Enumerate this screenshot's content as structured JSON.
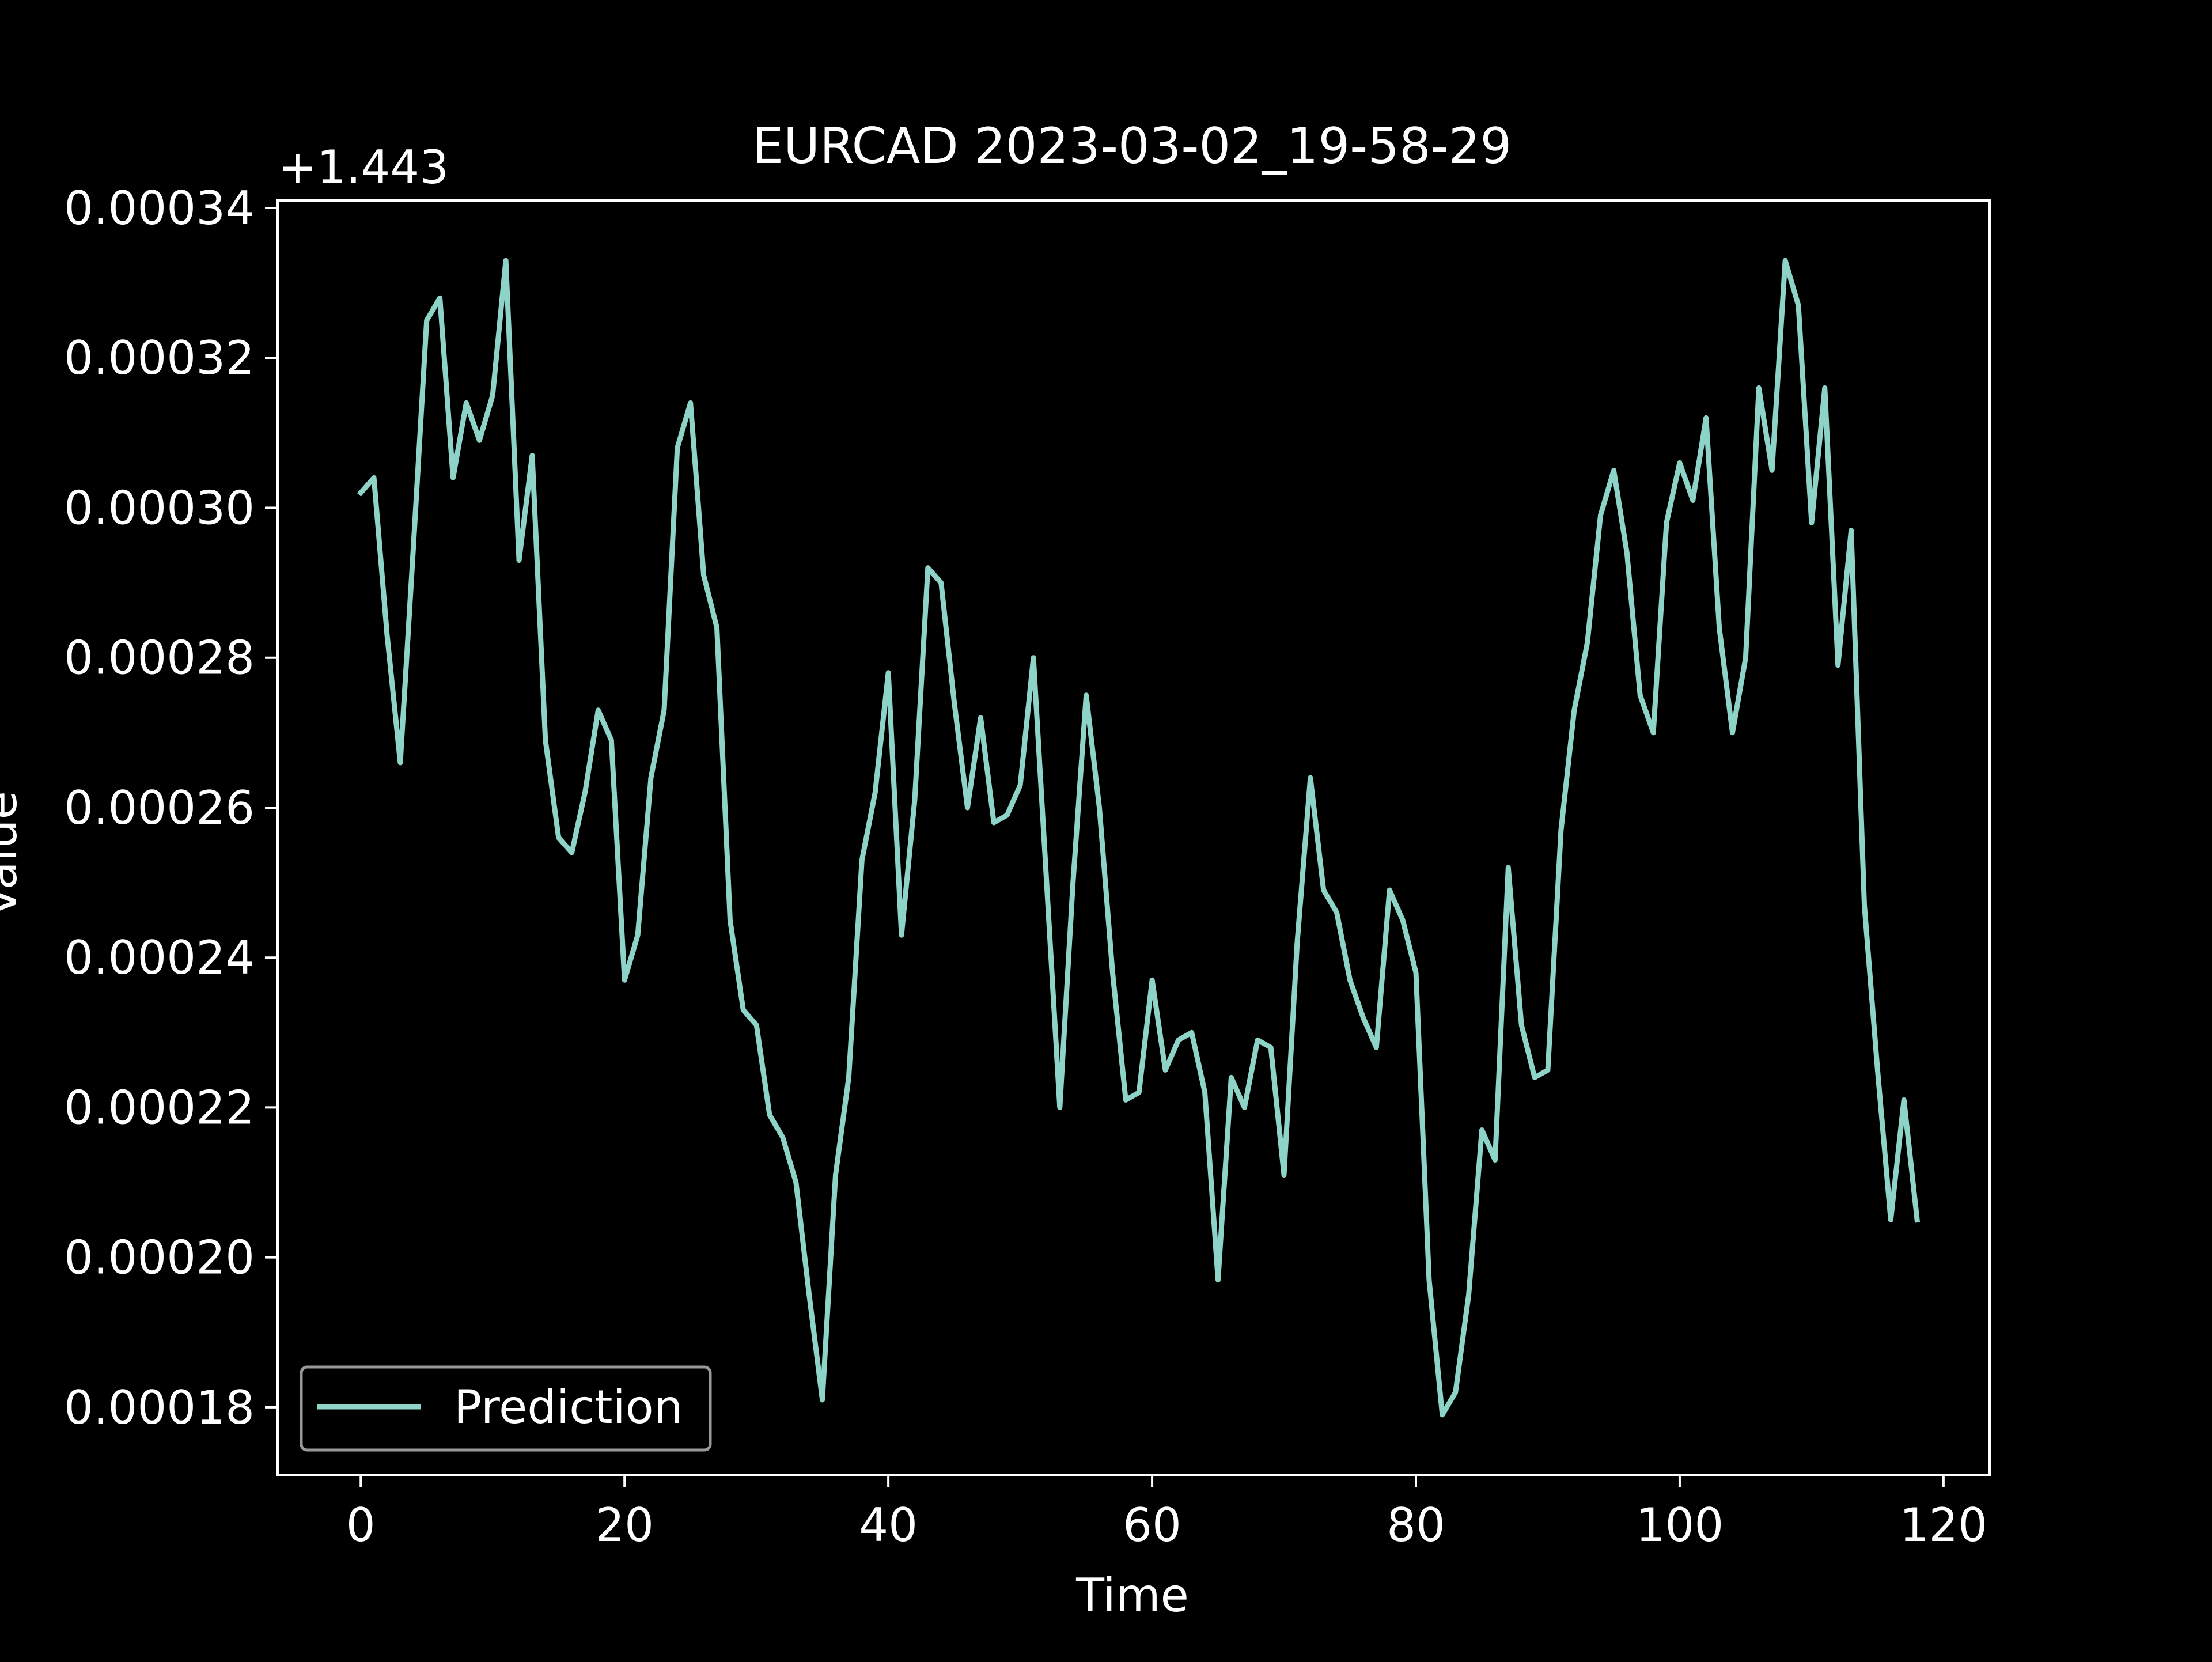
{
  "chart_data": {
    "type": "line",
    "title": "EURCAD 2023-03-02_19-58-29",
    "xlabel": "Time",
    "ylabel": "Value",
    "offset_label": "+1.443",
    "xlim": [
      -6.3,
      123.5
    ],
    "ylim": [
      0.000171,
      0.000341
    ],
    "x_ticks": [
      0,
      20,
      40,
      60,
      80,
      100,
      120
    ],
    "x_tick_labels": [
      "0",
      "20",
      "40",
      "60",
      "80",
      "100",
      "120"
    ],
    "y_ticks": [
      0.00018,
      0.0002,
      0.00022,
      0.00024,
      0.00026,
      0.00028,
      0.0003,
      0.00032,
      0.00034
    ],
    "y_tick_labels": [
      "0.00018",
      "0.00020",
      "0.00022",
      "0.00024",
      "0.00026",
      "0.00028",
      "0.00030",
      "0.00032",
      "0.00034"
    ],
    "grid": false,
    "legend": {
      "placement": "lower-left"
    },
    "colors": {
      "background": "#000000",
      "line": "#8dd3c7",
      "axes": "#ffffff",
      "text": "#ffffff",
      "legend_border": "#999999"
    },
    "series": [
      {
        "name": "Prediction",
        "x": [
          0,
          1,
          2,
          3,
          4,
          5,
          6,
          7,
          8,
          9,
          10,
          11,
          12,
          13,
          14,
          15,
          16,
          17,
          18,
          19,
          20,
          21,
          22,
          23,
          24,
          25,
          26,
          27,
          28,
          29,
          30,
          31,
          32,
          33,
          34,
          35,
          36,
          37,
          38,
          39,
          40,
          41,
          42,
          43,
          44,
          45,
          46,
          47,
          48,
          49,
          50,
          51,
          52,
          53,
          54,
          55,
          56,
          57,
          58,
          59,
          60,
          61,
          62,
          63,
          64,
          65,
          66,
          67,
          68,
          69,
          70,
          71,
          72,
          73,
          74,
          75,
          76,
          77,
          78,
          79,
          80,
          81,
          82,
          83,
          84,
          85,
          86,
          87,
          88,
          89,
          90,
          91,
          92,
          93,
          94,
          95,
          96,
          97,
          98,
          99,
          100,
          101,
          102,
          103,
          104,
          105,
          106,
          107,
          108,
          109,
          110,
          111,
          112,
          113,
          114,
          115,
          116,
          117,
          118
        ],
        "values": [
          0.000302,
          0.000304,
          0.000283,
          0.000266,
          0.000295,
          0.000325,
          0.000328,
          0.000304,
          0.000314,
          0.000309,
          0.000315,
          0.000333,
          0.000293,
          0.000307,
          0.000269,
          0.000256,
          0.000254,
          0.000262,
          0.000273,
          0.000269,
          0.000237,
          0.000243,
          0.000264,
          0.000273,
          0.000308,
          0.000314,
          0.000291,
          0.000284,
          0.000245,
          0.000233,
          0.000231,
          0.000219,
          0.000216,
          0.00021,
          0.000195,
          0.000181,
          0.000211,
          0.000224,
          0.000253,
          0.000262,
          0.000278,
          0.000243,
          0.000261,
          0.000292,
          0.00029,
          0.000274,
          0.00026,
          0.000272,
          0.000258,
          0.000259,
          0.000263,
          0.00028,
          0.00025,
          0.00022,
          0.00025,
          0.000275,
          0.00026,
          0.000238,
          0.000221,
          0.000222,
          0.000237,
          0.000225,
          0.000229,
          0.00023,
          0.000222,
          0.000197,
          0.000224,
          0.00022,
          0.000229,
          0.000228,
          0.000211,
          0.000242,
          0.000264,
          0.000249,
          0.000246,
          0.000237,
          0.000232,
          0.000228,
          0.000249,
          0.000245,
          0.000238,
          0.000197,
          0.000179,
          0.000182,
          0.000195,
          0.000217,
          0.000213,
          0.000252,
          0.000231,
          0.000224,
          0.000225,
          0.000257,
          0.000273,
          0.000282,
          0.000299,
          0.000305,
          0.000294,
          0.000275,
          0.00027,
          0.000298,
          0.000306,
          0.000301,
          0.000312,
          0.000284,
          0.00027,
          0.00028,
          0.000316,
          0.000305,
          0.000333,
          0.000327,
          0.000298,
          0.000316,
          0.000279,
          0.000297,
          0.000247,
          0.000225,
          0.000205,
          0.000221,
          0.000205
        ]
      }
    ]
  }
}
